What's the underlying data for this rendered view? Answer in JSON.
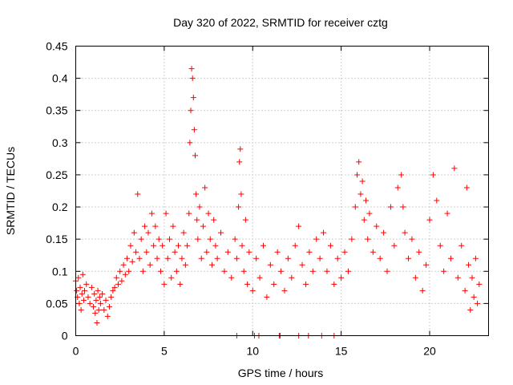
{
  "chart_data": {
    "type": "scatter",
    "title": "Day 320 of 2022, SRMTID for receiver cztg",
    "xlabel": "GPS time / hours",
    "ylabel": "SRMTID / TECUs",
    "xlim": [
      0,
      23.33
    ],
    "ylim": [
      0,
      0.45
    ],
    "xticks": [
      0,
      5,
      10,
      15,
      20
    ],
    "xtick_labels": [
      "0",
      "5",
      "10",
      "15",
      "20"
    ],
    "yticks": [
      0,
      0.05,
      0.1,
      0.15,
      0.2,
      0.25,
      0.3,
      0.35,
      0.4,
      0.45
    ],
    "ytick_labels": [
      "0",
      "0.05",
      "0.1",
      "0.15",
      "0.2",
      "0.25",
      "0.3",
      "0.35",
      "0.4",
      "0.45"
    ],
    "grid": true,
    "marker": "+",
    "color": "#ff0000",
    "series": [
      {
        "name": "SRMTID",
        "points": [
          [
            0.0,
            0.085
          ],
          [
            0.05,
            0.07
          ],
          [
            0.1,
            0.06
          ],
          [
            0.15,
            0.09
          ],
          [
            0.2,
            0.05
          ],
          [
            0.25,
            0.075
          ],
          [
            0.3,
            0.04
          ],
          [
            0.35,
            0.065
          ],
          [
            0.4,
            0.095
          ],
          [
            0.45,
            0.055
          ],
          [
            0.5,
            0.07
          ],
          [
            0.6,
            0.08
          ],
          [
            0.7,
            0.06
          ],
          [
            0.8,
            0.05
          ],
          [
            0.9,
            0.075
          ],
          [
            1.0,
            0.045
          ],
          [
            1.05,
            0.065
          ],
          [
            1.1,
            0.035
          ],
          [
            1.15,
            0.055
          ],
          [
            1.2,
            0.02
          ],
          [
            1.25,
            0.07
          ],
          [
            1.3,
            0.04
          ],
          [
            1.35,
            0.06
          ],
          [
            1.4,
            0.05
          ],
          [
            1.5,
            0.065
          ],
          [
            1.6,
            0.04
          ],
          [
            1.7,
            0.055
          ],
          [
            1.8,
            0.03
          ],
          [
            1.9,
            0.045
          ],
          [
            2.0,
            0.06
          ],
          [
            2.1,
            0.07
          ],
          [
            2.2,
            0.075
          ],
          [
            2.3,
            0.09
          ],
          [
            2.4,
            0.08
          ],
          [
            2.5,
            0.1
          ],
          [
            2.6,
            0.085
          ],
          [
            2.7,
            0.11
          ],
          [
            2.8,
            0.095
          ],
          [
            2.9,
            0.12
          ],
          [
            3.0,
            0.1
          ],
          [
            3.1,
            0.14
          ],
          [
            3.2,
            0.115
          ],
          [
            3.3,
            0.16
          ],
          [
            3.4,
            0.13
          ],
          [
            3.5,
            0.22
          ],
          [
            3.6,
            0.12
          ],
          [
            3.7,
            0.15
          ],
          [
            3.8,
            0.1
          ],
          [
            3.9,
            0.17
          ],
          [
            4.0,
            0.13
          ],
          [
            4.1,
            0.16
          ],
          [
            4.2,
            0.11
          ],
          [
            4.3,
            0.19
          ],
          [
            4.4,
            0.14
          ],
          [
            4.5,
            0.17
          ],
          [
            4.6,
            0.12
          ],
          [
            4.7,
            0.15
          ],
          [
            4.8,
            0.1
          ],
          [
            4.9,
            0.14
          ],
          [
            5.0,
            0.08
          ],
          [
            5.1,
            0.19
          ],
          [
            5.2,
            0.12
          ],
          [
            5.3,
            0.15
          ],
          [
            5.4,
            0.09
          ],
          [
            5.5,
            0.17
          ],
          [
            5.6,
            0.13
          ],
          [
            5.7,
            0.1
          ],
          [
            5.8,
            0.14
          ],
          [
            5.9,
            0.08
          ],
          [
            6.0,
            0.12
          ],
          [
            6.1,
            0.16
          ],
          [
            6.2,
            0.11
          ],
          [
            6.3,
            0.14
          ],
          [
            6.4,
            0.19
          ],
          [
            6.45,
            0.3
          ],
          [
            6.5,
            0.35
          ],
          [
            6.55,
            0.415
          ],
          [
            6.6,
            0.4
          ],
          [
            6.65,
            0.37
          ],
          [
            6.7,
            0.32
          ],
          [
            6.75,
            0.28
          ],
          [
            6.8,
            0.22
          ],
          [
            6.85,
            0.18
          ],
          [
            6.9,
            0.15
          ],
          [
            7.0,
            0.2
          ],
          [
            7.1,
            0.12
          ],
          [
            7.2,
            0.17
          ],
          [
            7.3,
            0.23
          ],
          [
            7.4,
            0.13
          ],
          [
            7.5,
            0.19
          ],
          [
            7.6,
            0.15
          ],
          [
            7.7,
            0.11
          ],
          [
            7.8,
            0.18
          ],
          [
            7.9,
            0.14
          ],
          [
            8.0,
            0.12
          ],
          [
            8.2,
            0.16
          ],
          [
            8.4,
            0.1
          ],
          [
            8.6,
            0.13
          ],
          [
            8.8,
            0.09
          ],
          [
            9.0,
            0.15
          ],
          [
            9.1,
            0.12
          ],
          [
            9.2,
            0.2
          ],
          [
            9.25,
            0.27
          ],
          [
            9.3,
            0.29
          ],
          [
            9.35,
            0.22
          ],
          [
            9.4,
            0.14
          ],
          [
            9.5,
            0.1
          ],
          [
            9.6,
            0.18
          ],
          [
            9.7,
            0.08
          ],
          [
            9.8,
            0.13
          ],
          [
            10.0,
            0.07
          ],
          [
            10.2,
            0.12
          ],
          [
            10.4,
            0.09
          ],
          [
            10.6,
            0.14
          ],
          [
            10.8,
            0.06
          ],
          [
            11.0,
            0.11
          ],
          [
            11.2,
            0.08
          ],
          [
            11.4,
            0.13
          ],
          [
            11.6,
            0.1
          ],
          [
            11.8,
            0.07
          ],
          [
            12.0,
            0.12
          ],
          [
            12.2,
            0.09
          ],
          [
            12.4,
            0.14
          ],
          [
            12.6,
            0.17
          ],
          [
            12.8,
            0.11
          ],
          [
            13.0,
            0.08
          ],
          [
            13.2,
            0.13
          ],
          [
            13.4,
            0.1
          ],
          [
            13.6,
            0.15
          ],
          [
            13.8,
            0.12
          ],
          [
            14.0,
            0.16
          ],
          [
            14.2,
            0.1
          ],
          [
            14.4,
            0.14
          ],
          [
            14.6,
            0.08
          ],
          [
            14.8,
            0.12
          ],
          [
            15.0,
            0.09
          ],
          [
            15.2,
            0.13
          ],
          [
            15.4,
            0.1
          ],
          [
            15.6,
            0.15
          ],
          [
            15.8,
            0.2
          ],
          [
            15.9,
            0.25
          ],
          [
            16.0,
            0.27
          ],
          [
            16.1,
            0.22
          ],
          [
            16.2,
            0.24
          ],
          [
            16.3,
            0.18
          ],
          [
            16.4,
            0.21
          ],
          [
            16.5,
            0.15
          ],
          [
            16.6,
            0.19
          ],
          [
            16.8,
            0.13
          ],
          [
            17.0,
            0.17
          ],
          [
            17.2,
            0.12
          ],
          [
            17.4,
            0.16
          ],
          [
            17.6,
            0.1
          ],
          [
            17.8,
            0.2
          ],
          [
            18.0,
            0.14
          ],
          [
            18.2,
            0.23
          ],
          [
            18.4,
            0.25
          ],
          [
            18.5,
            0.2
          ],
          [
            18.6,
            0.16
          ],
          [
            18.8,
            0.12
          ],
          [
            19.0,
            0.15
          ],
          [
            19.2,
            0.09
          ],
          [
            19.4,
            0.13
          ],
          [
            19.6,
            0.07
          ],
          [
            19.8,
            0.11
          ],
          [
            20.0,
            0.18
          ],
          [
            20.2,
            0.25
          ],
          [
            20.4,
            0.21
          ],
          [
            20.6,
            0.14
          ],
          [
            20.8,
            0.1
          ],
          [
            21.0,
            0.19
          ],
          [
            21.2,
            0.12
          ],
          [
            21.4,
            0.26
          ],
          [
            21.6,
            0.09
          ],
          [
            21.8,
            0.14
          ],
          [
            22.0,
            0.07
          ],
          [
            22.1,
            0.23
          ],
          [
            22.2,
            0.11
          ],
          [
            22.3,
            0.04
          ],
          [
            22.4,
            0.09
          ],
          [
            22.5,
            0.06
          ],
          [
            22.6,
            0.12
          ],
          [
            22.7,
            0.05
          ],
          [
            22.8,
            0.08
          ]
        ],
        "zero_points": [
          9.1,
          10.1,
          10.35,
          11.5,
          11.55,
          12.6,
          13.15,
          13.9,
          14.6
        ]
      }
    ]
  }
}
